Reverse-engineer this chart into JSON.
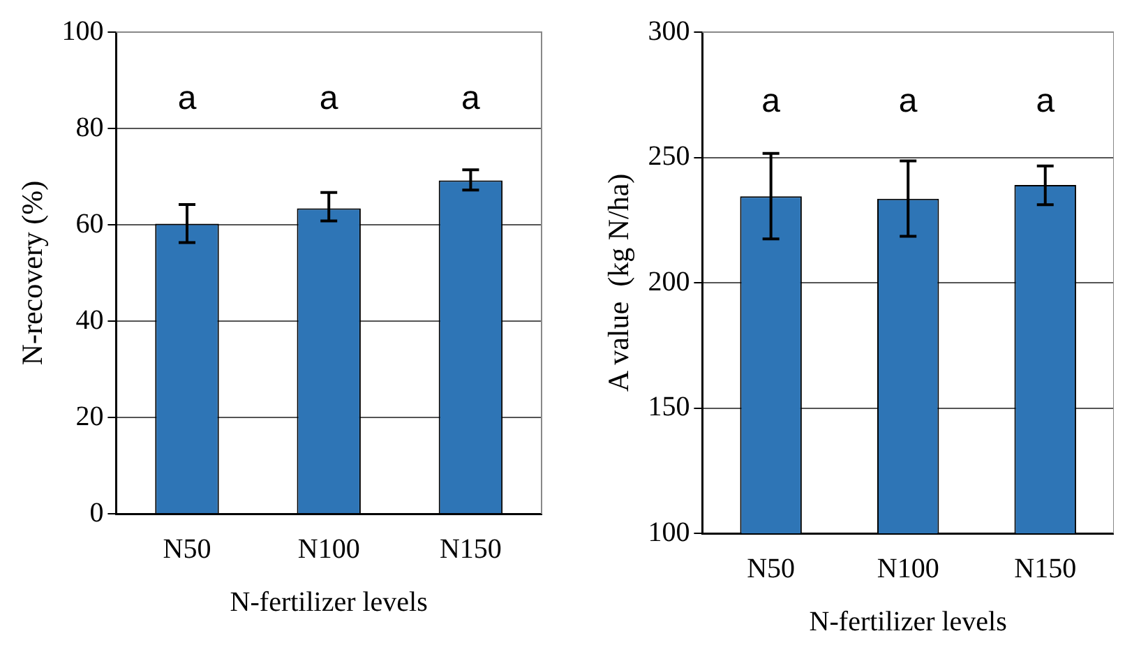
{
  "chart_data": [
    {
      "type": "bar",
      "categories": [
        "N50",
        "N100",
        "N150"
      ],
      "values": [
        60.2,
        63.4,
        69.2
      ],
      "color": "#2e75b6",
      "errors": [
        [
          56.3,
          64.2
        ],
        [
          60.8,
          66.7
        ],
        [
          67.2,
          71.4
        ]
      ],
      "ylim": [
        0,
        100
      ],
      "yticks": [
        0,
        20,
        40,
        60,
        80,
        100
      ],
      "grid": "y",
      "legend": false,
      "xlabel": "N-fertilizer levels",
      "ylabel": "N-recovery (%)",
      "annotations": [
        "a",
        "a",
        "a"
      ]
    },
    {
      "type": "bar",
      "categories": [
        "N50",
        "N100",
        "N150"
      ],
      "values": [
        234.5,
        233.5,
        239
      ],
      "color": "#2e75b6",
      "errors": [
        [
          217.5,
          251.6
        ],
        [
          218.5,
          248.6
        ],
        [
          231.1,
          246.6
        ]
      ],
      "ylim": [
        100,
        300
      ],
      "yticks": [
        100,
        150,
        200,
        250,
        300
      ],
      "grid": "y",
      "legend": false,
      "xlabel": "N-fertilizer levels",
      "ylabel": "A value  (kg N/ha)",
      "annotations": [
        "a",
        "a",
        "a"
      ]
    }
  ]
}
